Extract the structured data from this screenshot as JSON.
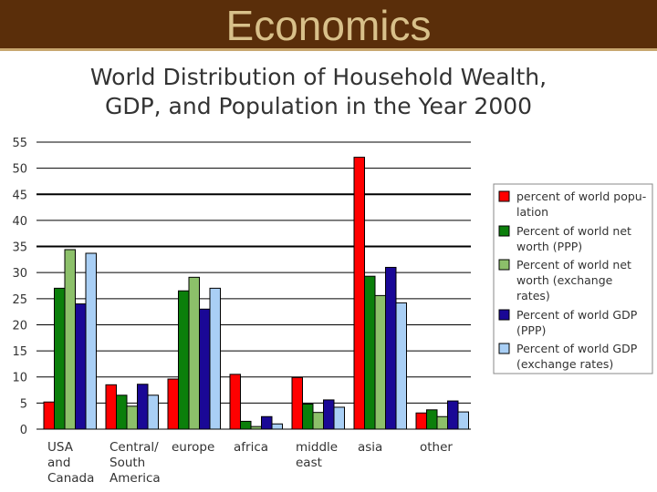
{
  "header": {
    "title": "Economics",
    "background": "#5a2e0a",
    "title_color": "#d8c08a"
  },
  "chart_data": {
    "type": "bar",
    "title_lines": [
      "World Distribution of Household Wealth,",
      "GDP, and Population in the Year 2000"
    ],
    "xlabel": "",
    "ylabel": "",
    "ylim": [
      0,
      55
    ],
    "yticks": [
      0,
      5,
      10,
      15,
      20,
      25,
      30,
      35,
      40,
      45,
      50,
      55
    ],
    "grid": "horizontal",
    "legend_position": "right",
    "categories": [
      [
        "USA",
        "and",
        "Canada"
      ],
      [
        "Central/",
        "South",
        "America"
      ],
      [
        "europe"
      ],
      [
        "africa"
      ],
      [
        "middle",
        "east"
      ],
      [
        "asia"
      ],
      [
        "other"
      ]
    ],
    "series": [
      {
        "name": [
          "percent of world popu-",
          "lation"
        ],
        "color": "#ff0000",
        "values": [
          5.2,
          8.5,
          9.6,
          10.5,
          9.9,
          52.1,
          3.1
        ]
      },
      {
        "name": [
          "Percent of world net",
          "worth (PPP)"
        ],
        "color": "#0b7f0b",
        "values": [
          27,
          6.5,
          26.5,
          1.5,
          4.8,
          29.3,
          3.7
        ]
      },
      {
        "name": [
          "Percent of world net",
          "worth (exchange",
          "rates)"
        ],
        "color": "#8cc06a",
        "values": [
          34.4,
          4.4,
          29.1,
          0.5,
          3.2,
          25.6,
          2.4
        ]
      },
      {
        "name": [
          "Percent of world GDP",
          "(PPP)"
        ],
        "color": "#1a0896",
        "values": [
          24,
          8.6,
          23,
          2.4,
          5.6,
          31,
          5.4
        ]
      },
      {
        "name": [
          "Percent of world GDP",
          "(exchange rates)"
        ],
        "color": "#a9cff5",
        "values": [
          33.7,
          6.5,
          27,
          1,
          4.2,
          24.2,
          3.3
        ]
      }
    ]
  }
}
